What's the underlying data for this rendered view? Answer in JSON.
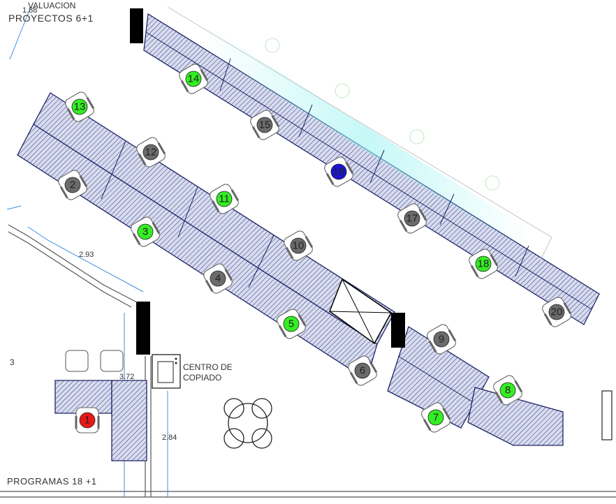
{
  "labels": {
    "area_top": "PROYECTOS  6+1",
    "area_top_partial": "VALUACION",
    "dim_top": "1.88",
    "dim_2_93": "2.93",
    "dim_3_72": "3.72",
    "dim_2_84": "2.84",
    "left_num": "3",
    "copy_center_line1": "CENTRO DE",
    "copy_center_line2": "COPIADO",
    "area_bottom": "PROGRAMAS   18 +1"
  },
  "colors": {
    "available": "#33ee22",
    "occupied": "#6b6b6b",
    "selected": "#1a14d4",
    "blocked": "#e81818",
    "desk_fill": "#d8dcef",
    "desk_stroke": "#1e2466",
    "dim_line": "#3a8fe0"
  },
  "legend_states": [
    "available",
    "occupied",
    "selected",
    "blocked"
  ],
  "seats": [
    {
      "num": "1",
      "status": "blocked"
    },
    {
      "num": "2",
      "status": "occupied"
    },
    {
      "num": "3",
      "status": "available"
    },
    {
      "num": "4",
      "status": "occupied"
    },
    {
      "num": "5",
      "status": "available"
    },
    {
      "num": "6",
      "status": "occupied"
    },
    {
      "num": "7",
      "status": "available"
    },
    {
      "num": "8",
      "status": "available"
    },
    {
      "num": "9",
      "status": "occupied"
    },
    {
      "num": "10",
      "status": "occupied"
    },
    {
      "num": "11",
      "status": "available"
    },
    {
      "num": "12",
      "status": "occupied"
    },
    {
      "num": "13",
      "status": "available"
    },
    {
      "num": "14",
      "status": "available"
    },
    {
      "num": "15",
      "status": "occupied"
    },
    {
      "num": "16",
      "status": "selected"
    },
    {
      "num": "17",
      "status": "occupied"
    },
    {
      "num": "18",
      "status": "available"
    },
    {
      "num": "20",
      "status": "occupied"
    }
  ]
}
